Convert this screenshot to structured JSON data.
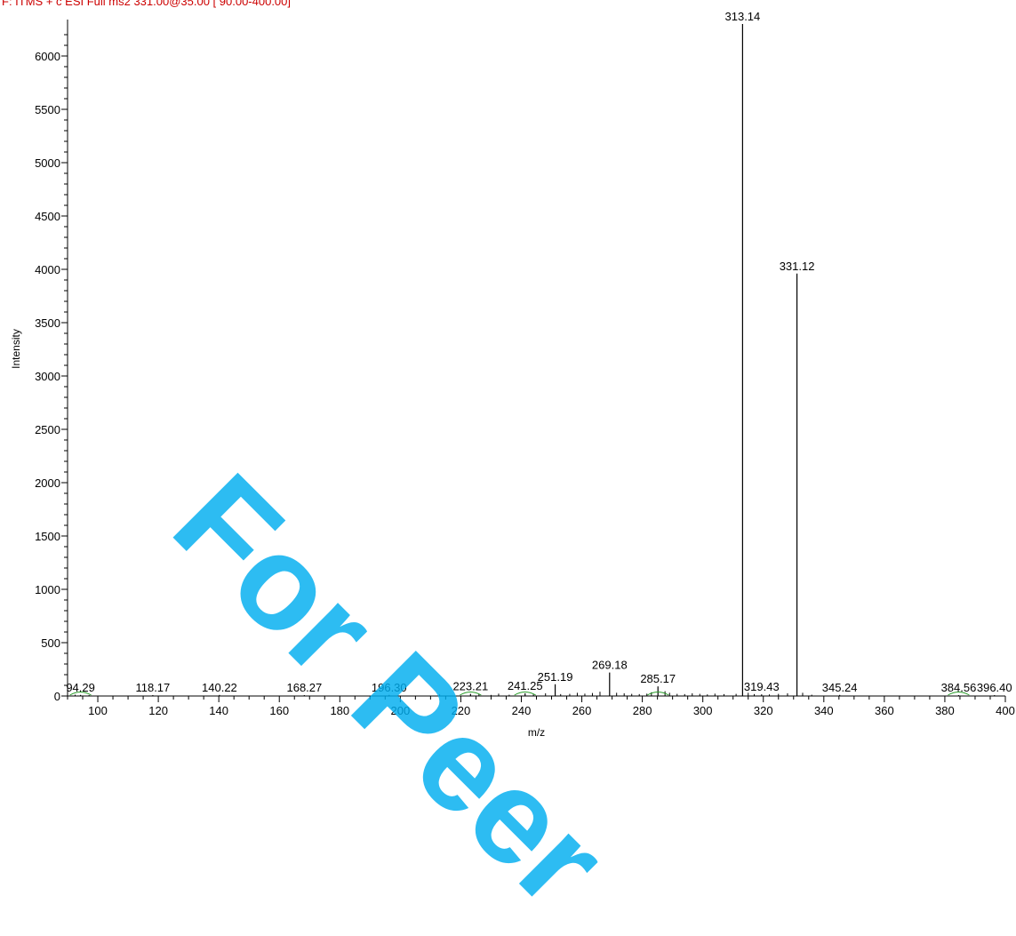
{
  "header": {
    "filter_line": "F: ITMS + c ESI Full ms2 331.00@35.00 [ 90.00-400.00]"
  },
  "watermark": {
    "text": "For Peer"
  },
  "colors": {
    "axis": "#000000",
    "peak": "#000000",
    "filter_text": "#cc0000",
    "watermark": "#00aef0",
    "annotation_green": "#2a9d2a"
  },
  "chart_data": {
    "type": "bar",
    "xlabel": "m/z",
    "ylabel": "Intensity",
    "xlim": [
      90,
      400
    ],
    "ylim": [
      0,
      6300
    ],
    "x_ticks": [
      100,
      120,
      140,
      160,
      180,
      200,
      220,
      240,
      260,
      280,
      300,
      320,
      340,
      360,
      380,
      400
    ],
    "y_ticks": [
      0,
      500,
      1000,
      1500,
      2000,
      2500,
      3000,
      3500,
      4000,
      4500,
      5000,
      5500,
      6000
    ],
    "grid": false,
    "peaks": [
      {
        "mz": 94.29,
        "intensity": 10,
        "label": "94.29"
      },
      {
        "mz": 118.17,
        "intensity": 8,
        "label": "118.17"
      },
      {
        "mz": 140.22,
        "intensity": 10,
        "label": "140.22"
      },
      {
        "mz": 168.27,
        "intensity": 8,
        "label": "168.27"
      },
      {
        "mz": 196.3,
        "intensity": 10,
        "label": "196.30"
      },
      {
        "mz": 223.21,
        "intensity": 20,
        "label": "223.21"
      },
      {
        "mz": 241.25,
        "intensity": 25,
        "label": "241.25"
      },
      {
        "mz": 251.19,
        "intensity": 110,
        "label": "251.19"
      },
      {
        "mz": 269.18,
        "intensity": 220,
        "label": "269.18"
      },
      {
        "mz": 285.17,
        "intensity": 90,
        "label": "285.17"
      },
      {
        "mz": 313.14,
        "intensity": 6300,
        "label": "313.14"
      },
      {
        "mz": 319.43,
        "intensity": 15,
        "label": "319.43"
      },
      {
        "mz": 331.12,
        "intensity": 3960,
        "label": "331.12"
      },
      {
        "mz": 345.24,
        "intensity": 10,
        "label": "345.24"
      },
      {
        "mz": 384.56,
        "intensity": 8,
        "label": "384.56"
      },
      {
        "mz": 396.4,
        "intensity": 8,
        "label": "396.40"
      }
    ],
    "noise_peaks": [
      {
        "mz": 92.5,
        "intensity": 12
      },
      {
        "mz": 97.1,
        "intensity": 9
      },
      {
        "mz": 213.0,
        "intensity": 14
      },
      {
        "mz": 226.0,
        "intensity": 18
      },
      {
        "mz": 230.0,
        "intensity": 10
      },
      {
        "mz": 232.5,
        "intensity": 22
      },
      {
        "mz": 236.0,
        "intensity": 12
      },
      {
        "mz": 244.0,
        "intensity": 15
      },
      {
        "mz": 248.0,
        "intensity": 25
      },
      {
        "mz": 253.0,
        "intensity": 18
      },
      {
        "mz": 256.0,
        "intensity": 20
      },
      {
        "mz": 258.5,
        "intensity": 30
      },
      {
        "mz": 261.0,
        "intensity": 22
      },
      {
        "mz": 263.5,
        "intensity": 28
      },
      {
        "mz": 266.0,
        "intensity": 40
      },
      {
        "mz": 271.5,
        "intensity": 30
      },
      {
        "mz": 274.0,
        "intensity": 25
      },
      {
        "mz": 276.5,
        "intensity": 20
      },
      {
        "mz": 279.0,
        "intensity": 18
      },
      {
        "mz": 281.5,
        "intensity": 22
      },
      {
        "mz": 283.0,
        "intensity": 35
      },
      {
        "mz": 287.5,
        "intensity": 45
      },
      {
        "mz": 289.0,
        "intensity": 30
      },
      {
        "mz": 291.5,
        "intensity": 20
      },
      {
        "mz": 294.0,
        "intensity": 18
      },
      {
        "mz": 296.5,
        "intensity": 25
      },
      {
        "mz": 299.0,
        "intensity": 20
      },
      {
        "mz": 301.5,
        "intensity": 15
      },
      {
        "mz": 304.0,
        "intensity": 22
      },
      {
        "mz": 307.0,
        "intensity": 18
      },
      {
        "mz": 311.0,
        "intensity": 20
      },
      {
        "mz": 315.0,
        "intensity": 30
      },
      {
        "mz": 317.0,
        "intensity": 18
      },
      {
        "mz": 322.0,
        "intensity": 15
      },
      {
        "mz": 325.0,
        "intensity": 20
      },
      {
        "mz": 328.0,
        "intensity": 25
      },
      {
        "mz": 333.0,
        "intensity": 30
      },
      {
        "mz": 336.0,
        "intensity": 12
      }
    ]
  }
}
